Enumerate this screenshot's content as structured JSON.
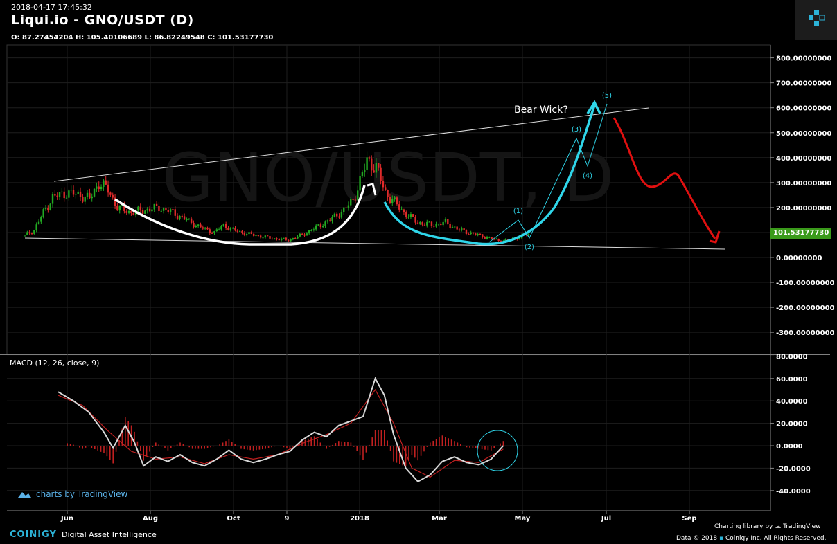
{
  "header": {
    "timestamp": "2018-04-17 17:45:32",
    "title": "Liqui.io - GNO/USDT (D)",
    "ohlc": "O: 87.27454204 H: 105.40106689 L: 86.82249548 C: 101.53177730"
  },
  "watermark": "GNO/USDT, D",
  "colors": {
    "up": "#22aa22",
    "down": "#e02a2a",
    "cyan": "#2fd6ea",
    "red_projection": "#e01010",
    "macd_line": "#d8d8d8",
    "signal_line": "#c02020",
    "price_tag": "#3a9a1a"
  },
  "chart_data": [
    {
      "type": "line",
      "name": "price",
      "ylim": [
        -370,
        860
      ],
      "yticks": [
        "800.00000000",
        "700.00000000",
        "600.00000000",
        "500.00000000",
        "400.00000000",
        "300.00000000",
        "200.00000000",
        "100.00000000",
        "0.00000000",
        "-100.00000000",
        "-200.00000000",
        "-300.00000000"
      ],
      "xticks": [
        "Jun",
        "Aug",
        "Oct",
        "9",
        "2018",
        "Mar",
        "May",
        "Jul",
        "Sep"
      ],
      "last_price": "101.53177730",
      "close_path": [
        [
          0,
          88
        ],
        [
          4,
          110
        ],
        [
          8,
          180
        ],
        [
          12,
          240
        ],
        [
          18,
          260
        ],
        [
          24,
          250
        ],
        [
          28,
          235
        ],
        [
          32,
          300
        ],
        [
          36,
          270
        ],
        [
          40,
          200
        ],
        [
          46,
          180
        ],
        [
          52,
          190
        ],
        [
          58,
          200
        ],
        [
          64,
          180
        ],
        [
          70,
          150
        ],
        [
          76,
          120
        ],
        [
          82,
          100
        ],
        [
          86,
          130
        ],
        [
          90,
          110
        ],
        [
          96,
          95
        ],
        [
          102,
          85
        ],
        [
          108,
          75
        ],
        [
          114,
          70
        ],
        [
          120,
          90
        ],
        [
          126,
          120
        ],
        [
          132,
          150
        ],
        [
          138,
          190
        ],
        [
          142,
          230
        ],
        [
          146,
          330
        ],
        [
          148,
          390
        ],
        [
          152,
          360
        ],
        [
          156,
          260
        ],
        [
          160,
          220
        ],
        [
          164,
          180
        ],
        [
          170,
          140
        ],
        [
          176,
          130
        ],
        [
          182,
          140
        ],
        [
          188,
          110
        ],
        [
          194,
          95
        ],
        [
          200,
          80
        ],
        [
          206,
          65
        ],
        [
          212,
          75
        ],
        [
          218,
          95
        ]
      ],
      "annotations": {
        "bear_wick": "Bear Wick?",
        "wave_labels": [
          "(1)",
          "(2)",
          "(3)",
          "(4)",
          "(5)"
        ]
      }
    },
    {
      "type": "line",
      "name": "MACD (12, 26, close, 9)",
      "ylim": [
        -50,
        80
      ],
      "yticks": [
        "80.0000",
        "60.0000",
        "40.0000",
        "20.0000",
        "0.0000",
        "-20.0000",
        "-40.0000"
      ],
      "macd": [
        [
          0,
          48
        ],
        [
          5,
          40
        ],
        [
          10,
          30
        ],
        [
          15,
          12
        ],
        [
          18,
          -2
        ],
        [
          22,
          18
        ],
        [
          25,
          3
        ],
        [
          28,
          -18
        ],
        [
          32,
          -10
        ],
        [
          36,
          -14
        ],
        [
          40,
          -8
        ],
        [
          44,
          -15
        ],
        [
          48,
          -18
        ],
        [
          52,
          -12
        ],
        [
          56,
          -4
        ],
        [
          60,
          -12
        ],
        [
          64,
          -15
        ],
        [
          68,
          -12
        ],
        [
          72,
          -8
        ],
        [
          76,
          -5
        ],
        [
          80,
          5
        ],
        [
          84,
          12
        ],
        [
          88,
          8
        ],
        [
          92,
          18
        ],
        [
          96,
          22
        ],
        [
          100,
          26
        ],
        [
          104,
          60
        ],
        [
          107,
          45
        ],
        [
          110,
          10
        ],
        [
          114,
          -20
        ],
        [
          118,
          -32
        ],
        [
          122,
          -26
        ],
        [
          126,
          -14
        ],
        [
          130,
          -10
        ],
        [
          134,
          -15
        ],
        [
          138,
          -17
        ],
        [
          142,
          -12
        ],
        [
          146,
          0
        ]
      ],
      "signal": [
        [
          0,
          45
        ],
        [
          8,
          36
        ],
        [
          16,
          14
        ],
        [
          24,
          -5
        ],
        [
          32,
          -12
        ],
        [
          40,
          -10
        ],
        [
          48,
          -16
        ],
        [
          56,
          -8
        ],
        [
          64,
          -12
        ],
        [
          72,
          -8
        ],
        [
          80,
          2
        ],
        [
          88,
          10
        ],
        [
          96,
          20
        ],
        [
          104,
          50
        ],
        [
          110,
          20
        ],
        [
          116,
          -20
        ],
        [
          122,
          -28
        ],
        [
          130,
          -13
        ],
        [
          138,
          -15
        ],
        [
          146,
          -3
        ]
      ]
    }
  ],
  "macd_label": "MACD (12, 26, close, 9)",
  "footer": {
    "tradingview_badge": "charts by TradingView",
    "brand": "COINIGY",
    "tagline": "Digital Asset Intelligence",
    "charting_library": "Charting library by",
    "tradingview": "TradingView",
    "copyright": "Data © 2018",
    "copyright_rest": "Coinigy Inc. All Rights Reserved."
  }
}
